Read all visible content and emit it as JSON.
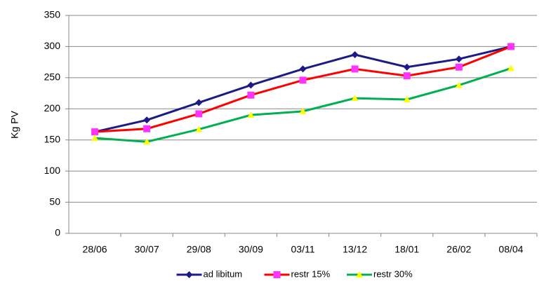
{
  "chart_data": {
    "type": "line",
    "y_label": "Kg PV",
    "categories": [
      "28/06",
      "30/07",
      "29/08",
      "30/09",
      "03/11",
      "13/12",
      "18/01",
      "26/02",
      "08/04"
    ],
    "series": [
      {
        "name": "ad libitum",
        "color": "#1c1a86",
        "marker": "diamond",
        "marker_color": "#1c1a86",
        "values": [
          163,
          182,
          210,
          238,
          264,
          287,
          267,
          280,
          300
        ]
      },
      {
        "name": "restr 15%",
        "color": "#ff0000",
        "marker": "square",
        "marker_color": "#ff33ff",
        "values": [
          163,
          168,
          192,
          222,
          246,
          264,
          253,
          267,
          300
        ]
      },
      {
        "name": "restr 30%",
        "color": "#00b050",
        "marker": "triangle",
        "marker_color": "#ffff00",
        "values": [
          153,
          147,
          167,
          190,
          196,
          217,
          215,
          238,
          265
        ]
      }
    ],
    "ylim": [
      0,
      350
    ],
    "yticks": [
      0,
      50,
      100,
      150,
      200,
      250,
      300,
      350
    ],
    "grid": true,
    "legend": "bottom"
  }
}
